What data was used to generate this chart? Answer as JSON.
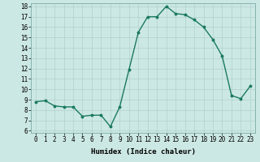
{
  "x": [
    0,
    1,
    2,
    3,
    4,
    5,
    6,
    7,
    8,
    9,
    10,
    11,
    12,
    13,
    14,
    15,
    16,
    17,
    18,
    19,
    20,
    21,
    22,
    23
  ],
  "y": [
    8.8,
    8.9,
    8.4,
    8.3,
    8.3,
    7.4,
    7.5,
    7.5,
    6.4,
    8.3,
    11.9,
    15.5,
    17.0,
    17.0,
    18.0,
    17.3,
    17.2,
    16.7,
    16.0,
    14.8,
    13.2,
    9.4,
    9.1,
    10.3
  ],
  "line_color": "#1a7a5e",
  "marker": "o",
  "marker_size": 1.8,
  "bg_color": "#cce8e4",
  "grid_color": "#b0d0cc",
  "xlabel": "Humidex (Indice chaleur)",
  "xlabel_fontsize": 6.5,
  "ylim_min": 5.8,
  "ylim_max": 18.3,
  "xlim_min": -0.5,
  "xlim_max": 23.5,
  "yticks": [
    6,
    7,
    8,
    9,
    10,
    11,
    12,
    13,
    14,
    15,
    16,
    17,
    18
  ],
  "xticks": [
    0,
    1,
    2,
    3,
    4,
    5,
    6,
    7,
    8,
    9,
    10,
    11,
    12,
    13,
    14,
    15,
    16,
    17,
    18,
    19,
    20,
    21,
    22,
    23
  ],
  "tick_fontsize": 5.5,
  "line_width": 1.0
}
